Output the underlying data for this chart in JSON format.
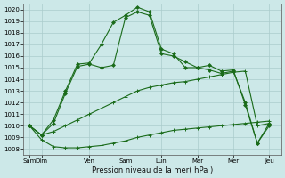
{
  "background_color": "#cce8e8",
  "grid_color": "#b0d0d0",
  "line_color": "#1a6b1a",
  "xlabels": [
    "Sam",
    "Dim",
    "Ven",
    "Sam",
    "Lun",
    "Mar",
    "Mer",
    "Jeu"
  ],
  "xtick_positions": [
    0,
    1,
    5,
    8,
    11,
    14,
    17,
    20
  ],
  "xlabel": "Pression niveau de la mer( hPa )",
  "ylim": [
    1007.5,
    1020.5
  ],
  "yticks": [
    1008,
    1009,
    1010,
    1011,
    1012,
    1013,
    1014,
    1015,
    1016,
    1017,
    1018,
    1019,
    1020
  ],
  "xlim": [
    -0.5,
    21
  ],
  "series": [
    {
      "x": [
        0,
        1,
        2,
        3,
        4,
        5,
        6,
        7,
        8,
        9,
        10,
        11,
        12,
        13,
        14,
        15,
        16,
        17,
        18,
        19,
        20
      ],
      "y": [
        1010.0,
        1008.8,
        1008.2,
        1008.1,
        1008.1,
        1008.2,
        1008.3,
        1008.5,
        1008.7,
        1009.0,
        1009.2,
        1009.4,
        1009.6,
        1009.7,
        1009.8,
        1009.9,
        1010.0,
        1010.1,
        1010.2,
        1010.3,
        1010.4
      ],
      "marker": "+"
    },
    {
      "x": [
        0,
        1,
        2,
        3,
        4,
        5,
        6,
        7,
        8,
        9,
        10,
        11,
        12,
        13,
        14,
        15,
        16,
        17,
        18,
        19,
        20
      ],
      "y": [
        1010.0,
        1009.2,
        1009.5,
        1010.0,
        1010.5,
        1011.0,
        1011.5,
        1012.0,
        1012.5,
        1013.0,
        1013.3,
        1013.5,
        1013.7,
        1013.8,
        1014.0,
        1014.2,
        1014.4,
        1014.6,
        1014.7,
        1010.0,
        1010.2
      ],
      "marker": "+"
    },
    {
      "x": [
        0,
        1,
        2,
        3,
        4,
        5,
        6,
        7,
        8,
        9,
        10,
        11,
        12,
        13,
        14,
        15,
        16,
        17,
        18,
        19,
        20
      ],
      "y": [
        1010.0,
        1009.2,
        1010.2,
        1012.8,
        1015.1,
        1015.3,
        1015.0,
        1015.2,
        1019.3,
        1019.8,
        1019.5,
        1016.2,
        1016.0,
        1015.5,
        1015.0,
        1014.8,
        1014.5,
        1014.7,
        1012.0,
        1008.5,
        1010.0
      ],
      "marker": "D"
    },
    {
      "x": [
        0,
        1,
        2,
        3,
        4,
        5,
        6,
        7,
        8,
        9,
        10,
        11,
        12,
        13,
        14,
        15,
        16,
        17,
        18,
        19,
        20
      ],
      "y": [
        1010.0,
        1009.2,
        1010.5,
        1013.0,
        1015.3,
        1015.4,
        1017.0,
        1018.9,
        1019.5,
        1020.2,
        1019.8,
        1016.6,
        1016.2,
        1015.0,
        1015.0,
        1015.2,
        1014.7,
        1014.8,
        1011.8,
        1008.5,
        1010.2
      ],
      "marker": "D"
    }
  ]
}
